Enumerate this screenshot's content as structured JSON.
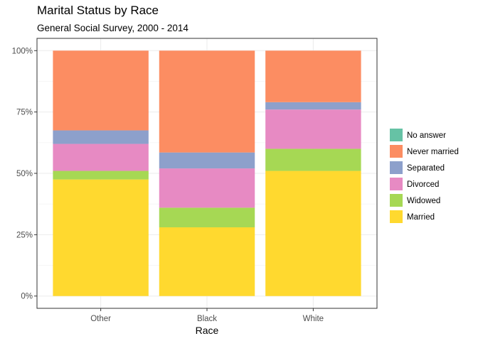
{
  "chart_data": {
    "type": "bar",
    "stacked": true,
    "orientation": "vertical",
    "title": "Marital Status by Race",
    "subtitle": "General Social Survey, 2000 - 2014",
    "xlabel": "Race",
    "ylabel": "",
    "ylim": [
      0,
      1
    ],
    "y_ticks": [
      0,
      0.25,
      0.5,
      0.75,
      1.0
    ],
    "y_tick_labels": [
      "0%",
      "25%",
      "50%",
      "75%",
      "100%"
    ],
    "grid": true,
    "legend_position": "right",
    "categories": [
      "Other",
      "Black",
      "White"
    ],
    "series": [
      {
        "name": "Married",
        "color": "#ffd92f",
        "values": [
          0.475,
          0.28,
          0.51
        ]
      },
      {
        "name": "Widowed",
        "color": "#a6d854",
        "values": [
          0.035,
          0.08,
          0.09
        ]
      },
      {
        "name": "Divorced",
        "color": "#e78ac3",
        "values": [
          0.11,
          0.16,
          0.16
        ]
      },
      {
        "name": "Separated",
        "color": "#8da0cb",
        "values": [
          0.055,
          0.065,
          0.03
        ]
      },
      {
        "name": "Never married",
        "color": "#fc8d62",
        "values": [
          0.325,
          0.415,
          0.21
        ]
      },
      {
        "name": "No answer",
        "color": "#66c2a5",
        "values": [
          0,
          0,
          0
        ]
      }
    ],
    "legend_order": [
      "No answer",
      "Never married",
      "Separated",
      "Divorced",
      "Widowed",
      "Married"
    ]
  }
}
